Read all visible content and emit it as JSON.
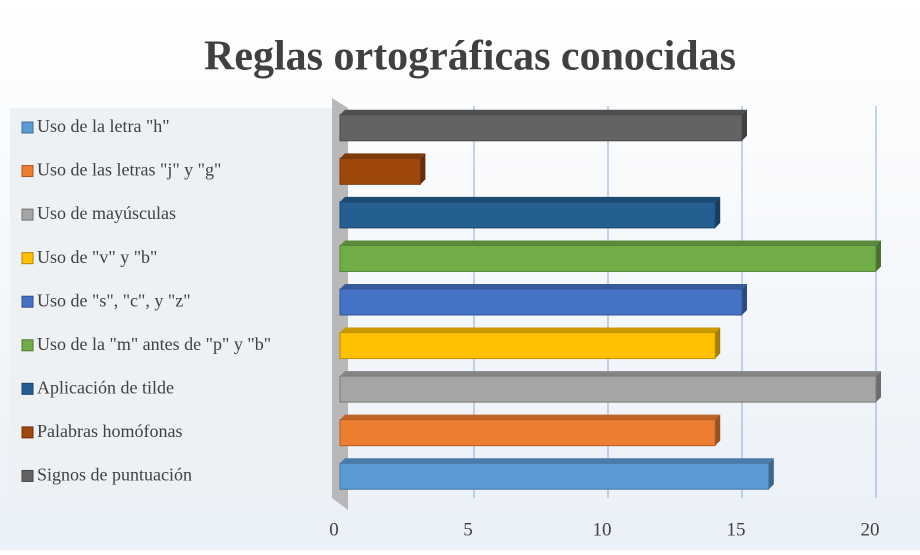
{
  "chart_data": {
    "type": "bar",
    "orientation": "horizontal",
    "title": "Reglas ortográficas conocidas",
    "series": [
      {
        "name": "Uso de la letra \"h\"",
        "color": "#5b9bd5",
        "values": [
          16
        ]
      },
      {
        "name": "Uso de las letras \"j\" y \"g\"",
        "color": "#ed7d31",
        "values": [
          14
        ]
      },
      {
        "name": "Uso de mayúsculas",
        "color": "#a5a5a5",
        "values": [
          20
        ]
      },
      {
        "name": "Uso de \"v\" y \"b\"",
        "color": "#ffc000",
        "values": [
          14
        ]
      },
      {
        "name": "Uso de \"s\", \"c\", y \"z\"",
        "color": "#4472c4",
        "values": [
          15
        ]
      },
      {
        "name": "Uso de la \"m\" antes de \"p\" y \"b\"",
        "color": "#70ad47",
        "values": [
          20
        ]
      },
      {
        "name": "Aplicación de tilde",
        "color": "#255e91",
        "values": [
          14
        ]
      },
      {
        "name": "Palabras homófonas",
        "color": "#9e480e",
        "values": [
          3
        ]
      },
      {
        "name": "Signos de puntuación",
        "color": "#636363",
        "values": [
          15
        ]
      }
    ],
    "xlim": [
      0,
      20
    ],
    "xticks": [
      0,
      5,
      10,
      15,
      20
    ],
    "grid": true,
    "legend": "left"
  }
}
